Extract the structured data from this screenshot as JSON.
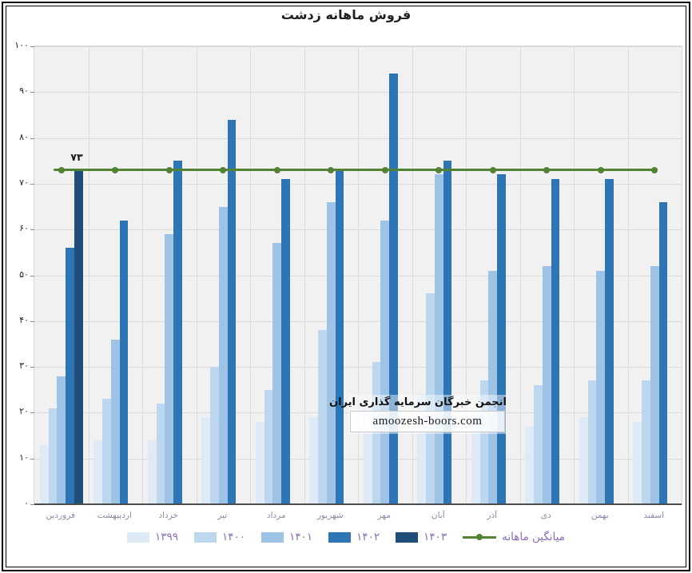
{
  "page": {
    "title": "فروش ماهانه زدشت"
  },
  "chart_data": {
    "type": "bar",
    "title": "فروش ماهانه زدشت",
    "rtl": true,
    "categories": [
      "فروردین",
      "اردیبهشت",
      "خرداد",
      "تیر",
      "مرداد",
      "شهریور",
      "مهر",
      "آبان",
      "آذر",
      "دی",
      "بهمن",
      "اسفند"
    ],
    "series": [
      {
        "name": "۱۳۹۹",
        "color": "#DEEBF7",
        "values": [
          13,
          14,
          14,
          19,
          18,
          19,
          21,
          24,
          20,
          17,
          19,
          18
        ]
      },
      {
        "name": "۱۴۰۰",
        "color": "#BDD7EE",
        "values": [
          21,
          23,
          22,
          30,
          25,
          38,
          31,
          46,
          27,
          26,
          27,
          27
        ]
      },
      {
        "name": "۱۴۰۱",
        "color": "#9DC3E6",
        "values": [
          28,
          36,
          59,
          65,
          57,
          66,
          62,
          72,
          51,
          52,
          51,
          52
        ]
      },
      {
        "name": "۱۴۰۲",
        "color": "#2E75B6",
        "values": [
          56,
          62,
          75,
          84,
          71,
          73,
          94,
          75,
          72,
          71,
          71,
          66
        ]
      },
      {
        "name": "۱۴۰۳",
        "color": "#1F4E79",
        "values": [
          73,
          null,
          null,
          null,
          null,
          null,
          null,
          null,
          null,
          null,
          null,
          null
        ]
      }
    ],
    "average_line": {
      "label": "میانگین ماهانه",
      "value": 73,
      "annotation": "۷۳",
      "color": "#548235"
    },
    "ylim": [
      0,
      100
    ],
    "ytick_step": 10,
    "ytick_labels": [
      "۰",
      "۱۰",
      "۲۰",
      "۳۰",
      "۴۰",
      "۵۰",
      "۶۰",
      "۷۰",
      "۸۰",
      "۹۰",
      "۱۰۰"
    ],
    "grid": true,
    "legend_position": "bottom"
  },
  "watermark": {
    "line1": "انجمن خبرگان سرمایه گذاری ایران",
    "line2": "amoozesh-boors.com"
  },
  "colors": {
    "plot_background": "#f1f1f2",
    "gridline": "#d9d9d9",
    "axis_text": "#262626",
    "category_text": "#8c89a5",
    "legend_text": "#8a6db8",
    "average_line": "#548235",
    "frame": "#000000"
  }
}
